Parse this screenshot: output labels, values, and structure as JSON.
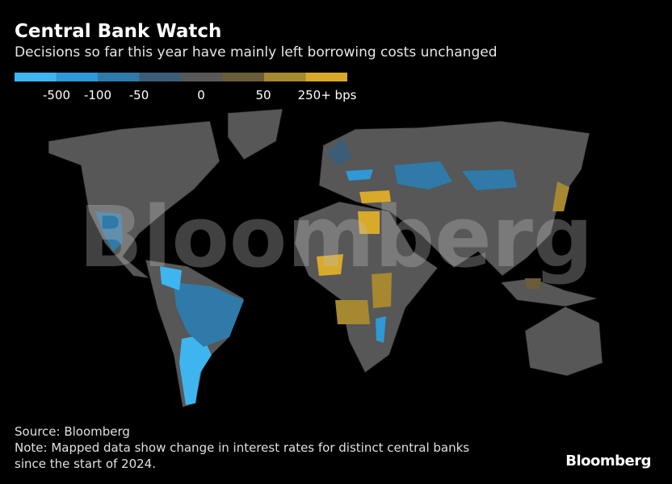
{
  "header": {
    "title": "Central Bank Watch",
    "subtitle": "Decisions so far this year have mainly left borrowing costs unchanged"
  },
  "legend": {
    "colors": [
      "#3fb5ef",
      "#2f98d6",
      "#2f7aa8",
      "#3b5d78",
      "#585858",
      "#6b5c3a",
      "#a5882f",
      "#d9a92a"
    ],
    "labels": [
      "-500",
      "-100",
      "-50",
      "0",
      "50",
      "250+ bps"
    ]
  },
  "watermark": "Bloomberg",
  "footer": {
    "source": "Source: Bloomberg",
    "note": [
      "Note: Mapped data show change in interest rates for distinct central banks",
      "since the start of 2024."
    ],
    "logo": "Bloomberg"
  }
}
